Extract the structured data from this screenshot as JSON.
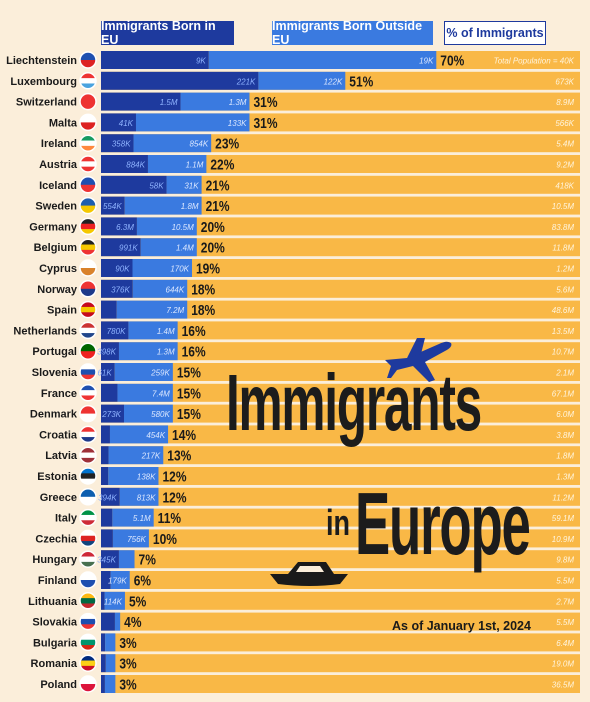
{
  "legend": {
    "eu_label": "Immigrants Born in EU",
    "outside_label": "Immigrants Born Outside EU",
    "pct_label": "% of Immigrants"
  },
  "title": {
    "main": "Immigrants",
    "connector": "in",
    "sub": "Europe",
    "date": "As of January 1st, 2024"
  },
  "colors": {
    "eu": "#1e3a9e",
    "outside": "#3a7ae0",
    "population_bar": "#f9b846",
    "background": "#fbeeda",
    "text_dark": "#1a1a1a"
  },
  "icons": [
    "plane-icon",
    "boat-icon"
  ],
  "chart_data": {
    "type": "bar",
    "stacked": true,
    "population_header": "Total Population = 40K",
    "countries": [
      {
        "name": "Liechtenstein",
        "eu": "9K",
        "eu_value": 9,
        "outside": "19K",
        "outside_value": 19,
        "pct": "70%",
        "population": "",
        "population_value": 40
      },
      {
        "name": "Luxembourg",
        "eu": "221K",
        "eu_value": 221,
        "outside": "122K",
        "outside_value": 122,
        "pct": "51%",
        "population": "673K",
        "population_value": 673
      },
      {
        "name": "Switzerland",
        "eu": "1.5M",
        "eu_value": 1500,
        "outside": "1.3M",
        "outside_value": 1300,
        "pct": "31%",
        "population": "8.9M",
        "population_value": 8900
      },
      {
        "name": "Malta",
        "eu": "41K",
        "eu_value": 41,
        "outside": "133K",
        "outside_value": 133,
        "pct": "31%",
        "population": "566K",
        "population_value": 566
      },
      {
        "name": "Ireland",
        "eu": "358K",
        "eu_value": 358,
        "outside": "854K",
        "outside_value": 854,
        "pct": "23%",
        "population": "5.4M",
        "population_value": 5400
      },
      {
        "name": "Austria",
        "eu": "884K",
        "eu_value": 884,
        "outside": "1.1M",
        "outside_value": 1100,
        "pct": "22%",
        "population": "9.2M",
        "population_value": 9200
      },
      {
        "name": "Iceland",
        "eu": "58K",
        "eu_value": 58,
        "outside": "31K",
        "outside_value": 31,
        "pct": "21%",
        "population": "418K",
        "population_value": 418
      },
      {
        "name": "Sweden",
        "eu": "554K",
        "eu_value": 554,
        "outside": "1.8M",
        "outside_value": 1800,
        "pct": "21%",
        "population": "10.5M",
        "population_value": 10500
      },
      {
        "name": "Germany",
        "eu": "6.3M",
        "eu_value": 6300,
        "outside": "10.5M",
        "outside_value": 10500,
        "pct": "20%",
        "population": "83.8M",
        "population_value": 83800
      },
      {
        "name": "Belgium",
        "eu": "991K",
        "eu_value": 991,
        "outside": "1.4M",
        "outside_value": 1400,
        "pct": "20%",
        "population": "11.8M",
        "population_value": 11800
      },
      {
        "name": "Cyprus",
        "eu": "90K",
        "eu_value": 90,
        "outside": "170K",
        "outside_value": 170,
        "pct": "19%",
        "population": "1.2M",
        "population_value": 1200
      },
      {
        "name": "Norway",
        "eu": "376K",
        "eu_value": 376,
        "outside": "644K",
        "outside_value": 644,
        "pct": "18%",
        "population": "5.6M",
        "population_value": 5600
      },
      {
        "name": "Spain",
        "eu": "",
        "eu_value": 1600,
        "outside": "7.2M",
        "outside_value": 7200,
        "pct": "18%",
        "population": "48.6M",
        "population_value": 48600
      },
      {
        "name": "Netherlands",
        "eu": "780K",
        "eu_value": 780,
        "outside": "1.4M",
        "outside_value": 1400,
        "pct": "16%",
        "population": "13.5M",
        "population_value": 13500
      },
      {
        "name": "Portugal",
        "eu": "398K",
        "eu_value": 398,
        "outside": "1.3M",
        "outside_value": 1300,
        "pct": "16%",
        "population": "10.7M",
        "population_value": 10700
      },
      {
        "name": "Slovenia",
        "eu": "61K",
        "eu_value": 61,
        "outside": "259K",
        "outside_value": 259,
        "pct": "15%",
        "population": "2.1M",
        "population_value": 2100
      },
      {
        "name": "France",
        "eu": "",
        "eu_value": 2200,
        "outside": "7.4M",
        "outside_value": 7400,
        "pct": "15%",
        "population": "67.1M",
        "population_value": 67100
      },
      {
        "name": "Denmark",
        "eu": "273K",
        "eu_value": 273,
        "outside": "580K",
        "outside_value": 580,
        "pct": "15%",
        "population": "6.0M",
        "population_value": 6000
      },
      {
        "name": "Croatia",
        "eu": "",
        "eu_value": 70,
        "outside": "454K",
        "outside_value": 454,
        "pct": "14%",
        "population": "3.8M",
        "population_value": 3800
      },
      {
        "name": "Latvia",
        "eu": "",
        "eu_value": 30,
        "outside": "217K",
        "outside_value": 217,
        "pct": "13%",
        "population": "1.8M",
        "population_value": 1800
      },
      {
        "name": "Estonia",
        "eu": "",
        "eu_value": 20,
        "outside": "138K",
        "outside_value": 138,
        "pct": "12%",
        "population": "1.3M",
        "population_value": 1300
      },
      {
        "name": "Greece",
        "eu": "394K",
        "eu_value": 394,
        "outside": "813K",
        "outside_value": 813,
        "pct": "12%",
        "population": "11.2M",
        "population_value": 11200
      },
      {
        "name": "Italy",
        "eu": "",
        "eu_value": 1400,
        "outside": "5.1M",
        "outside_value": 5100,
        "pct": "11%",
        "population": "59.1M",
        "population_value": 59100
      },
      {
        "name": "Czechia",
        "eu": "",
        "eu_value": 250,
        "outside": "756K",
        "outside_value": 756,
        "pct": "10%",
        "population": "10.9M",
        "population_value": 10900
      },
      {
        "name": "Hungary",
        "eu": "345K",
        "eu_value": 345,
        "outside": "",
        "outside_value": 300,
        "pct": "7%",
        "population": "9.8M",
        "population_value": 9800
      },
      {
        "name": "Finland",
        "eu": "",
        "eu_value": 90,
        "outside": "179K",
        "outside_value": 179,
        "pct": "6%",
        "population": "5.5M",
        "population_value": 5500
      },
      {
        "name": "Lithuania",
        "eu": "",
        "eu_value": 20,
        "outside": "114K",
        "outside_value": 114,
        "pct": "5%",
        "population": "2.7M",
        "population_value": 2700
      },
      {
        "name": "Slovakia",
        "eu": "",
        "eu_value": 160,
        "outside": "",
        "outside_value": 60,
        "pct": "4%",
        "population": "5.5M",
        "population_value": 5500
      },
      {
        "name": "Bulgaria",
        "eu": "",
        "eu_value": 60,
        "outside": "",
        "outside_value": 150,
        "pct": "3%",
        "population": "6.4M",
        "population_value": 6400
      },
      {
        "name": "Romania",
        "eu": "",
        "eu_value": 100,
        "outside": "",
        "outside_value": 200,
        "pct": "3%",
        "population": "19.0M",
        "population_value": 19000
      },
      {
        "name": "Poland",
        "eu": "",
        "eu_value": 300,
        "outside": "",
        "outside_value": 800,
        "pct": "3%",
        "population": "36.5M",
        "population_value": 36500
      }
    ]
  }
}
